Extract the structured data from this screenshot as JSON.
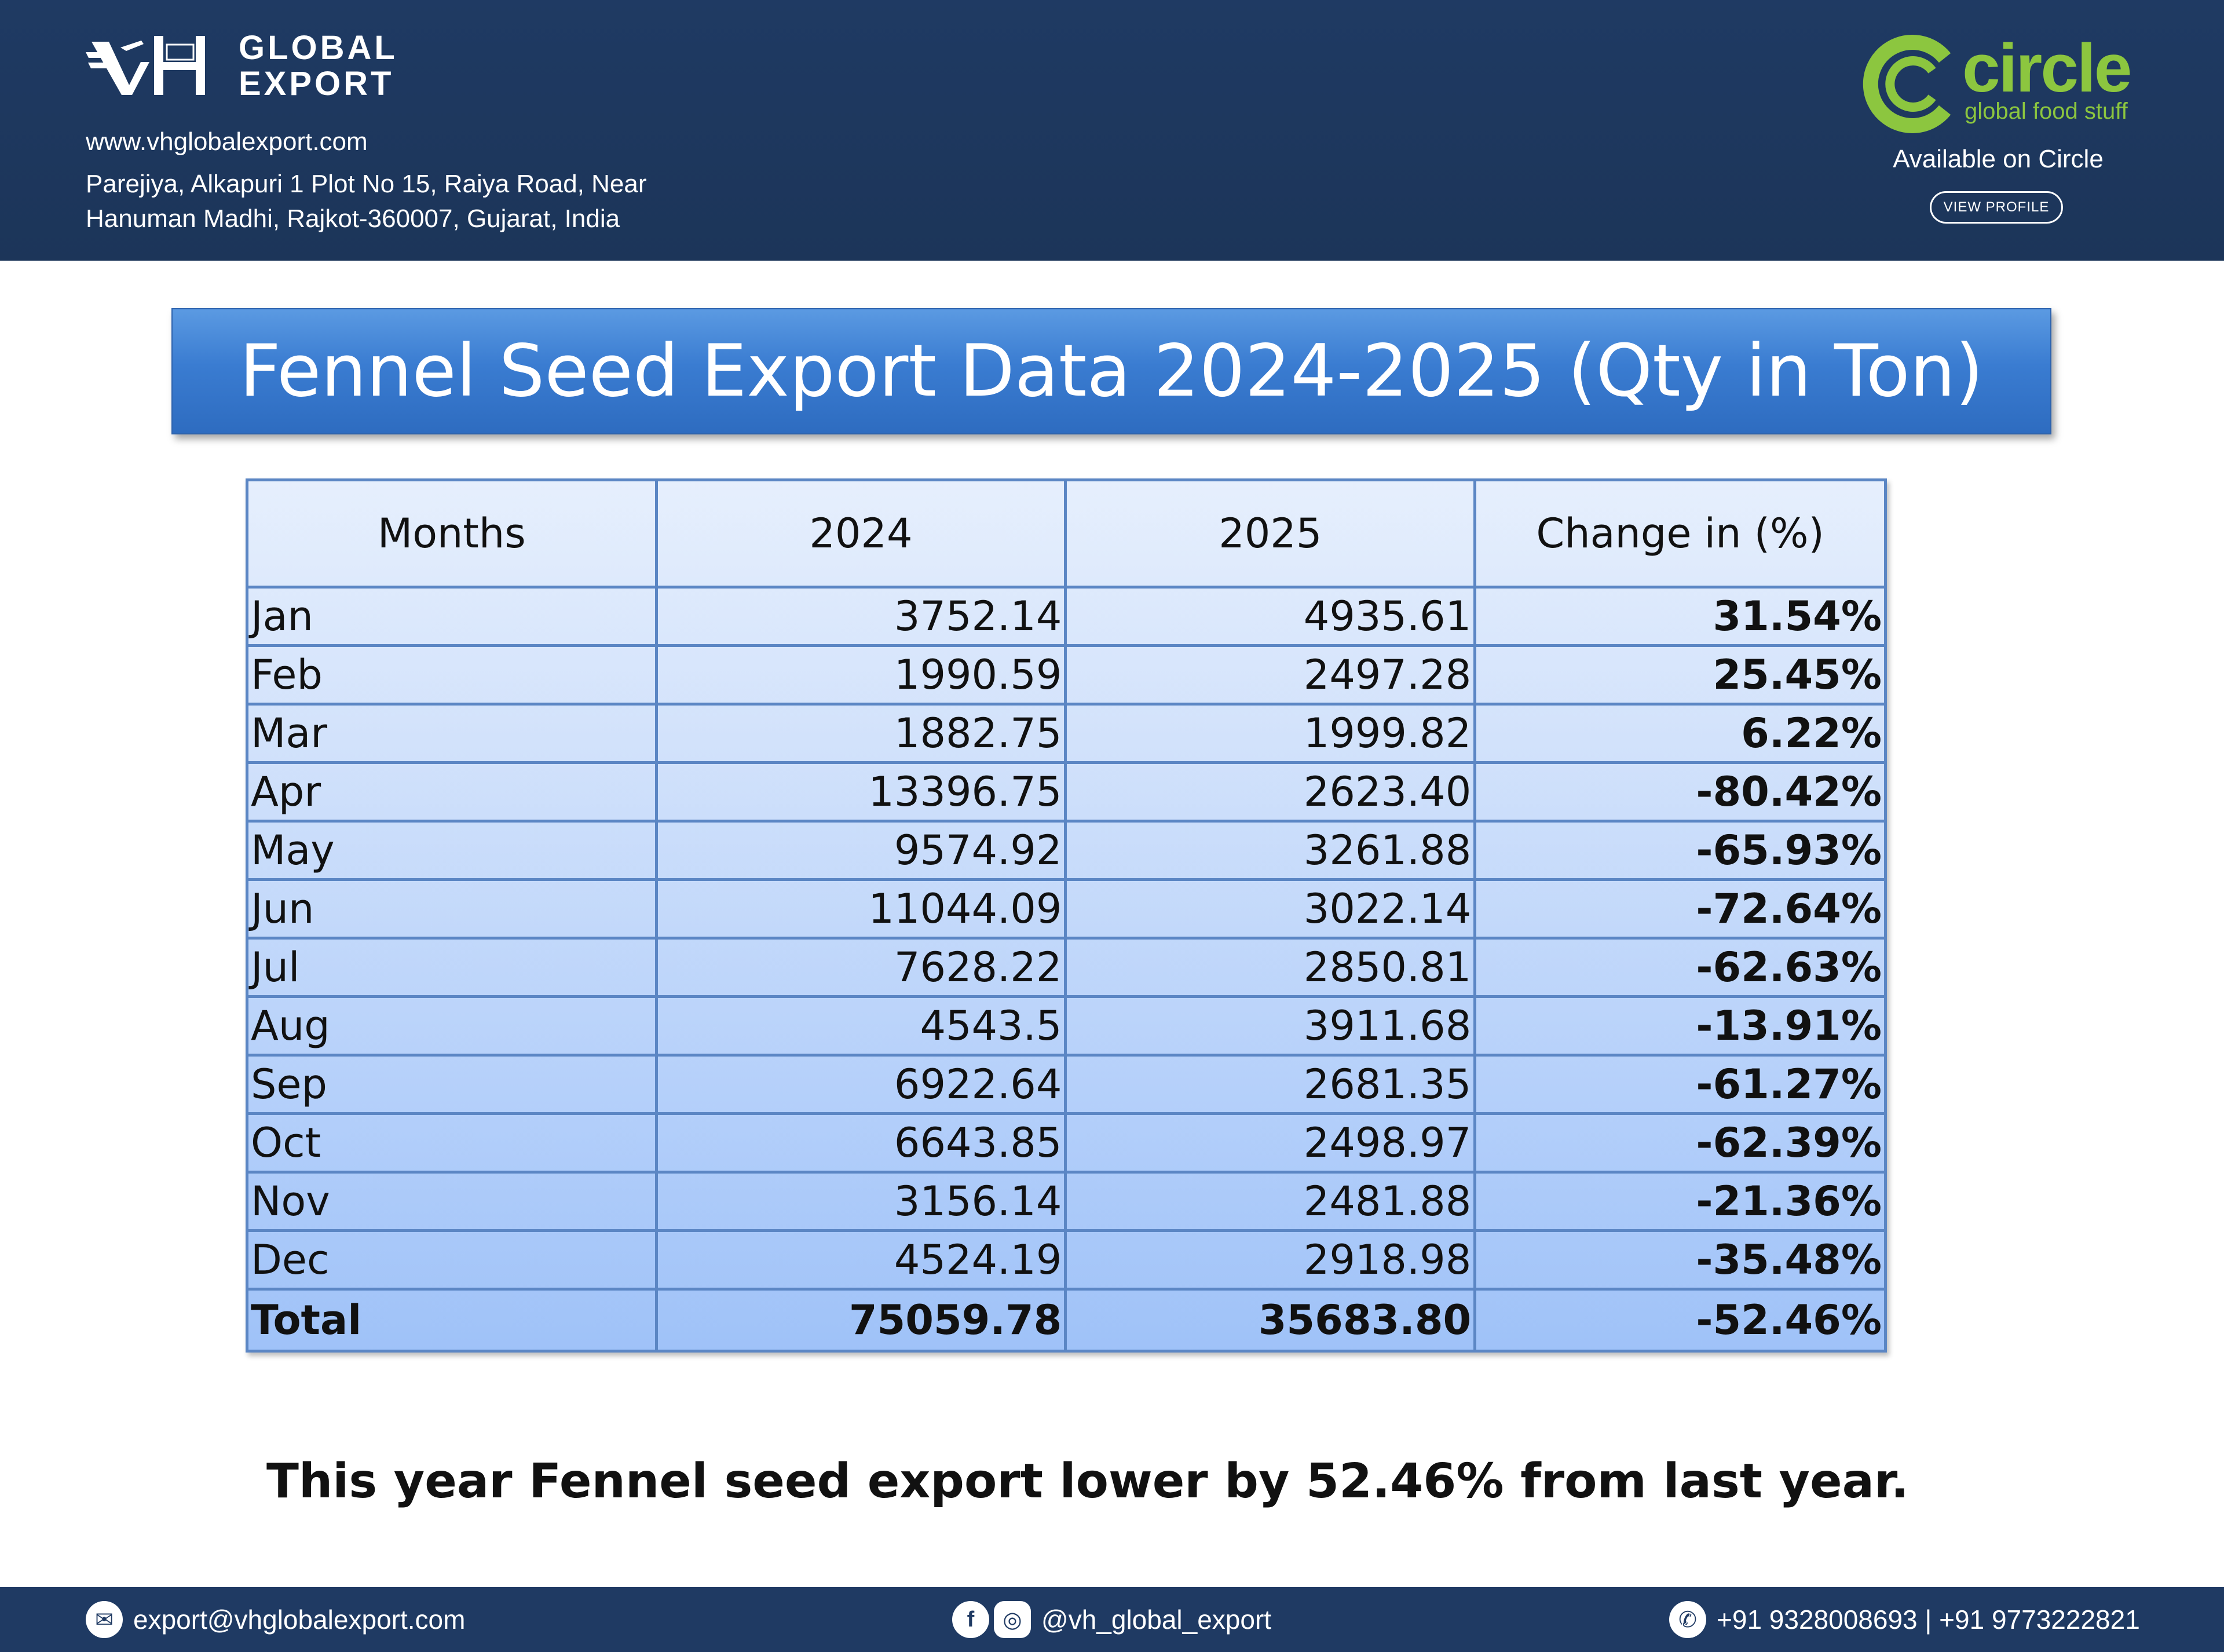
{
  "header": {
    "brand": {
      "line1": "GLOBAL",
      "line2": "EXPORT",
      "mark": "VH"
    },
    "website": "www.vhglobalexport.com",
    "address_line1": "Parejiya, Alkapuri 1 Plot No 15, Raiya Road, Near",
    "address_line2": "Hanuman Madhi, Rajkot-360007, Gujarat, India",
    "partner": {
      "name": "circle",
      "tagline": "global food stuff",
      "available": "Available on Circle",
      "button": "VIEW PROFILE"
    }
  },
  "title": "Fennel Seed  Export Data 2024-2025 (Qty in Ton)",
  "table": {
    "headers": [
      "Months",
      "2024",
      "2025",
      "Change in (%)"
    ],
    "rows": [
      {
        "month": "Jan",
        "y2024": "3752.14",
        "y2025": "4935.61",
        "change": "31.54%"
      },
      {
        "month": "Feb",
        "y2024": "1990.59",
        "y2025": "2497.28",
        "change": "25.45%"
      },
      {
        "month": "Mar",
        "y2024": "1882.75",
        "y2025": "1999.82",
        "change": "6.22%"
      },
      {
        "month": "Apr",
        "y2024": "13396.75",
        "y2025": "2623.40",
        "change": "-80.42%"
      },
      {
        "month": "May",
        "y2024": "9574.92",
        "y2025": "3261.88",
        "change": "-65.93%"
      },
      {
        "month": "Jun",
        "y2024": "11044.09",
        "y2025": "3022.14",
        "change": "-72.64%"
      },
      {
        "month": "Jul",
        "y2024": "7628.22",
        "y2025": "2850.81",
        "change": "-62.63%"
      },
      {
        "month": "Aug",
        "y2024": "4543.5",
        "y2025": "3911.68",
        "change": "-13.91%"
      },
      {
        "month": "Sep",
        "y2024": "6922.64",
        "y2025": "2681.35",
        "change": "-61.27%"
      },
      {
        "month": "Oct",
        "y2024": "6643.85",
        "y2025": "2498.97",
        "change": "-62.39%"
      },
      {
        "month": "Nov",
        "y2024": "3156.14",
        "y2025": "2481.88",
        "change": "-21.36%"
      },
      {
        "month": "Dec",
        "y2024": "4524.19",
        "y2025": "2918.98",
        "change": "-35.48%"
      }
    ],
    "total": {
      "month": "Total",
      "y2024": "75059.78",
      "y2025": "35683.80",
      "change": "-52.46%"
    }
  },
  "summary": "This year Fennel seed export lower by 52.46% from last year.",
  "footer": {
    "email": "export@vhglobalexport.com",
    "social": "@vh_global_export",
    "phone": "+91 9328008693 | +91 9773222821",
    "icons": {
      "email": "mail-icon",
      "facebook": "facebook-icon",
      "instagram": "instagram-icon",
      "phone": "phone-icon"
    }
  },
  "colors": {
    "header_bg": "#1f3a63",
    "brand_green": "#8cc63f",
    "banner_blue": "#3a7cd1"
  }
}
